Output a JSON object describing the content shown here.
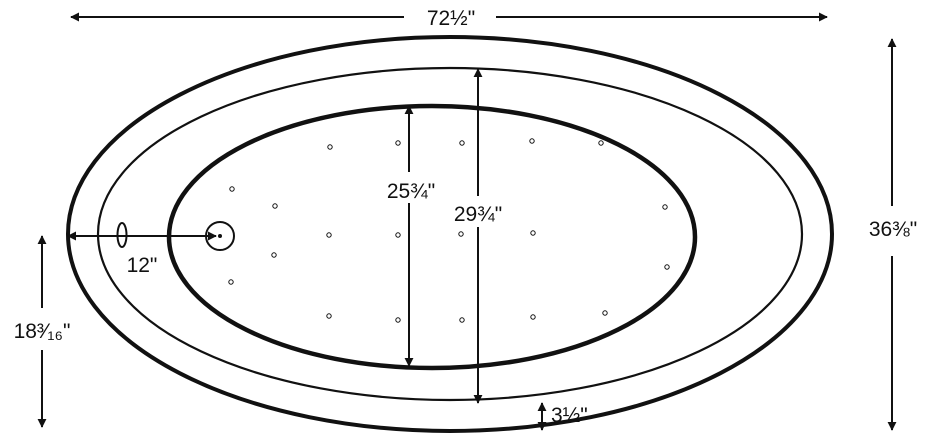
{
  "dimensions": {
    "overall_length": "72½\"",
    "overall_width": "36⅜\"",
    "center_offset": "18³⁄₁₆\"",
    "drain_offset": "12\"",
    "inner_width": "25¾\"",
    "mid_width": "29¾\"",
    "rim_height": "3½\""
  },
  "jet_count": 22,
  "colors": {
    "stroke": "#111111",
    "background": "#ffffff"
  }
}
